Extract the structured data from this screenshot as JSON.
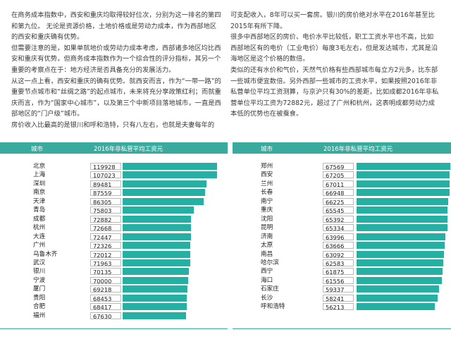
{
  "left_text": [
    "在商务成本指数中，西安和重庆均取得较好位次，分别为这一排名的第四和第九位。  无论是资源价格，土地价格或是劳动力成本，作为西部地区的西安和重庆确有优势。",
    "但需要注意的是，如果单就地价或劳动力成本考虑，西部诸多地区均比西安和重庆有优势，但商务成本指数作为一个综合性的评分指标，其另一个重要的考察点在于：地方经济是否具备充分的发展活力。",
    "从这一点上看，西安和重庆的确有优势。就西安而言，作为“一带一路”的重要节点城市和“丝绸之路”的起点城市，未来将充分享政策红利；而就重庆而言，作为“国家中心城市”，以及第三个中新项目落地城市，一直是西部地区的“门户级”城市。",
    "房价收入比最高的是银川和呼和浩特，只有八左右，也就是夫妻每年的"
  ],
  "right_text": [
    "可支配收入，8年可以买一套房。银川的房价绝对水平在2016年甚至比2015年有所下降。",
    "很多中西部地区的房价、电价水平比较低，职工工资水平也不高，比如西部地区有的电价（工业电价）每度3毛左右，但是发达城市，尤其是沿海地区是这个价格的数倍。",
    "类似的还有水价和气价，天然气价格有些西部城市每立方2元多，比东部一些城市便宜数倍。另外西部一些城市的工资水平，如果按照2016年非私营单位平均工资测算，与京沪只有30%的差距，比如成都2016年非私营单位平均工资为72882元，超过了广州和杭州，这表明成都劳动力成本低的优势也在被蚕食。"
  ],
  "table_headers": {
    "city": "城市",
    "salary": "2016年非私营平均工资元"
  },
  "chart_data": {
    "type": "bar",
    "value_range": [
      0,
      120000
    ],
    "bar_color": "#24b0a2",
    "header_color": "#3aaa9e",
    "tables": [
      {
        "categories": [
          "北京",
          "上海",
          "深圳",
          "南京",
          "天津",
          "青岛",
          "成都",
          "杭州",
          "大连",
          "广州",
          "乌鲁木齐",
          "武汉",
          "银川",
          "宁波",
          "厦门",
          "贵阳",
          "合肥",
          "福州"
        ],
        "values": [
          119928,
          107023,
          89481,
          87559,
          86305,
          75803,
          72882,
          72668,
          72447,
          72326,
          72012,
          71963,
          70135,
          70000,
          69218,
          68453,
          68417,
          67630
        ]
      },
      {
        "categories": [
          "郑州",
          "西安",
          "兰州",
          "长春",
          "南宁",
          "重庆",
          "沈阳",
          "昆明",
          "济南",
          "太原",
          "南昌",
          "哈尔滨",
          "西宁",
          "海口",
          "石家庄",
          "长沙",
          "呼和浩特"
        ],
        "values": [
          67569,
          67205,
          67011,
          66948,
          66225,
          65545,
          65392,
          65334,
          63996,
          63666,
          63092,
          62583,
          61875,
          61556,
          59337,
          58241,
          56213
        ]
      }
    ]
  }
}
